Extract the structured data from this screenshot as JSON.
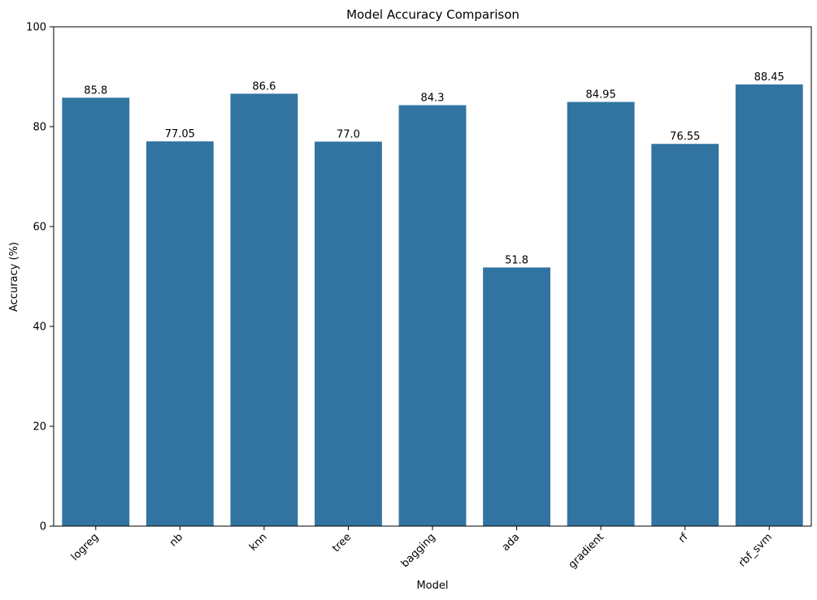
{
  "chart_data": {
    "type": "bar",
    "title": "Model Accuracy Comparison",
    "xlabel": "Model",
    "ylabel": "Accuracy (%)",
    "categories": [
      "logreg",
      "nb",
      "knn",
      "tree",
      "bagging",
      "ada",
      "gradient",
      "rf",
      "rbf_svm"
    ],
    "values": [
      85.8,
      77.05,
      86.6,
      77.0,
      84.3,
      51.8,
      84.95,
      76.55,
      88.45
    ],
    "value_labels": [
      "85.8",
      "77.05",
      "86.6",
      "77.0",
      "84.3",
      "51.8",
      "84.95",
      "76.55",
      "88.45"
    ],
    "ylim": [
      0,
      100
    ],
    "yticks": [
      0,
      20,
      40,
      60,
      80,
      100
    ],
    "ytick_labels": [
      "0",
      "20",
      "40",
      "60",
      "80",
      "100"
    ],
    "grid": false,
    "legend": "none",
    "bar_color": "#3274a1"
  }
}
